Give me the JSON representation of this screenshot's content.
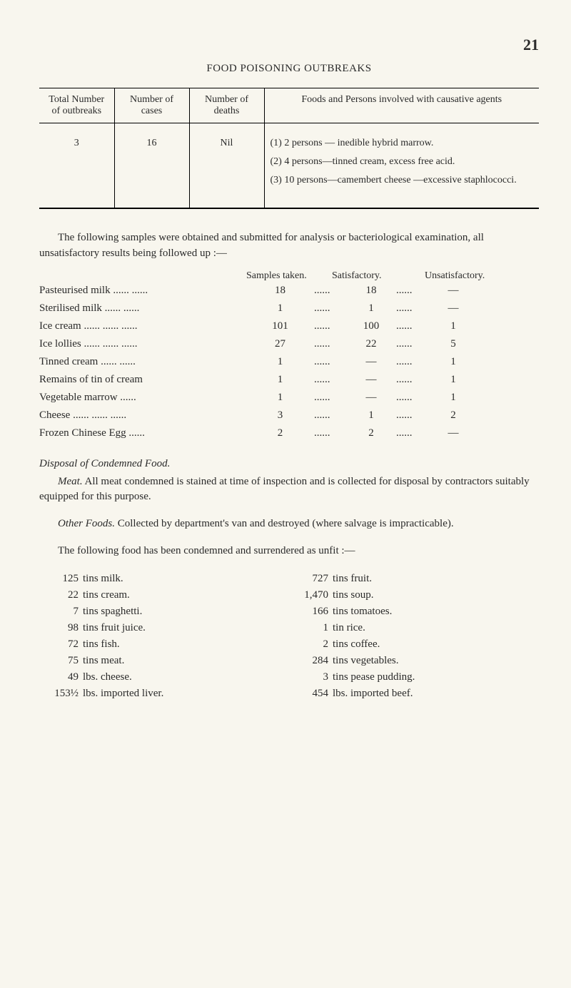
{
  "page_number": "21",
  "section_title": "FOOD POISONING OUTBREAKS",
  "table": {
    "headers": [
      "Total Number of outbreaks",
      "Number of cases",
      "Number of deaths",
      "Foods and Persons involved with causative agents"
    ],
    "row": {
      "outbreaks": "3",
      "cases": "16",
      "deaths": "Nil",
      "foods": [
        "(1) 2 persons — inedible hybrid marrow.",
        "(2) 4 persons—tinned cream, excess free acid.",
        "(3) 10 persons—camembert cheese —excessive staphlococci."
      ]
    }
  },
  "para_samples_intro": "The following samples were obtained and submitted for analysis or bacteriological examination, all unsatisfactory results being followed up :—",
  "samples": {
    "headers": [
      "",
      "Samples taken.",
      "Satisfactory.",
      "Unsatisfactory."
    ],
    "rows": [
      {
        "label": "Pasteurised milk ......      ......",
        "taken": "18",
        "sat": "18",
        "unsat": "—"
      },
      {
        "label": "Sterilised milk   ......      ......",
        "taken": "1",
        "sat": "1",
        "unsat": "—"
      },
      {
        "label": "Ice cream ......      ......      ......",
        "taken": "101",
        "sat": "100",
        "unsat": "1"
      },
      {
        "label": "Ice lollies ......      ......      ......",
        "taken": "27",
        "sat": "22",
        "unsat": "5"
      },
      {
        "label": "Tinned cream   ......      ......",
        "taken": "1",
        "sat": "—",
        "unsat": "1"
      },
      {
        "label": "Remains of tin of cream",
        "taken": "1",
        "sat": "—",
        "unsat": "1"
      },
      {
        "label": "Vegetable marrow      ......",
        "taken": "1",
        "sat": "—",
        "unsat": "1"
      },
      {
        "label": "Cheese    ......      ......      ......",
        "taken": "3",
        "sat": "1",
        "unsat": "2"
      },
      {
        "label": "Frozen Chinese Egg   ......",
        "taken": "2",
        "sat": "2",
        "unsat": "—"
      }
    ]
  },
  "disposal_heading": "Disposal of Condemned Food.",
  "meat_para_label": "Meat.",
  "meat_para": "  All meat condemned is stained at time of inspection and is collected for disposal by contractors suitably equipped for this purpose.",
  "other_foods_label": "Other Foods.",
  "other_foods_para": "  Collected by department's van and destroyed (where salvage is impracticable).",
  "condemned_intro": "The following food has been condemned and surrendered as unfit :—",
  "tins_left": [
    {
      "qty": "125",
      "text": "tins milk."
    },
    {
      "qty": "22",
      "text": "tins cream."
    },
    {
      "qty": "7",
      "text": "tins spaghetti."
    },
    {
      "qty": "98",
      "text": "tins fruit juice."
    },
    {
      "qty": "72",
      "text": "tins fish."
    },
    {
      "qty": "75",
      "text": "tins meat."
    },
    {
      "qty": "49",
      "text": "lbs. cheese."
    },
    {
      "qty": "153½",
      "text": "lbs. imported liver."
    }
  ],
  "tins_right": [
    {
      "qty": "727",
      "text": "tins fruit."
    },
    {
      "qty": "1,470",
      "text": "tins soup."
    },
    {
      "qty": "166",
      "text": "tins tomatoes."
    },
    {
      "qty": "1",
      "text": "tin rice."
    },
    {
      "qty": "2",
      "text": "tins coffee."
    },
    {
      "qty": "284",
      "text": "tins vegetables."
    },
    {
      "qty": "3",
      "text": "tins pease pudding."
    },
    {
      "qty": "454",
      "text": "lbs. imported beef."
    }
  ]
}
